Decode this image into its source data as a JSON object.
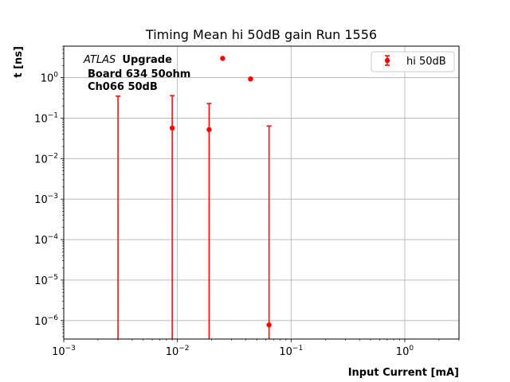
{
  "chart_data": {
    "type": "scatter",
    "title": "Timing Mean hi 50dB gain Run 1556",
    "xlabel": "Input Current [mA]",
    "ylabel": "t [ns]",
    "xscale": "log",
    "yscale": "log",
    "xlim": [
      0.001,
      3
    ],
    "ylim": [
      3.5e-07,
      6
    ],
    "grid": true,
    "legend_position": "top-right",
    "color": "#ff0000",
    "annotation": {
      "italic": "ATLAS",
      "bold": "Upgrade",
      "line2": "Board 634 50ohm",
      "line3": "Ch066 50dB"
    },
    "x_ticks": [
      {
        "base": "10",
        "exp": "−3",
        "value": 0.001
      },
      {
        "base": "10",
        "exp": "−2",
        "value": 0.01
      },
      {
        "base": "10",
        "exp": "−1",
        "value": 0.1
      },
      {
        "base": "10",
        "exp": "0",
        "value": 1
      }
    ],
    "y_ticks": [
      {
        "base": "10",
        "exp": "−6",
        "value": 1e-06
      },
      {
        "base": "10",
        "exp": "−5",
        "value": 1e-05
      },
      {
        "base": "10",
        "exp": "−4",
        "value": 0.0001
      },
      {
        "base": "10",
        "exp": "−3",
        "value": 0.001
      },
      {
        "base": "10",
        "exp": "−2",
        "value": 0.01
      },
      {
        "base": "10",
        "exp": "−1",
        "value": 0.1
      },
      {
        "base": "10",
        "exp": "0",
        "value": 1
      }
    ],
    "series": [
      {
        "name": "hi 50dB",
        "points": [
          {
            "x": 0.003,
            "y": null,
            "y_upper": 0.35
          },
          {
            "x": 0.009,
            "y": 0.057,
            "y_upper": 0.36
          },
          {
            "x": 0.019,
            "y": 0.052,
            "y_upper": 0.23
          },
          {
            "x": 0.025,
            "y": 3.0,
            "y_upper": null
          },
          {
            "x": 0.044,
            "y": 0.93,
            "y_upper": null
          },
          {
            "x": 0.064,
            "y": 7.8e-07,
            "y_upper": 0.064
          }
        ]
      }
    ]
  }
}
